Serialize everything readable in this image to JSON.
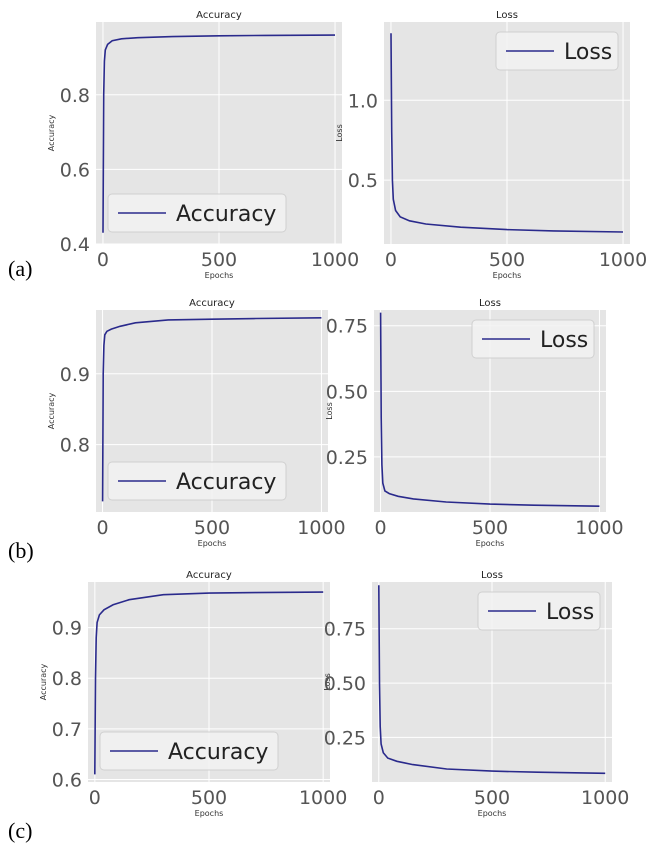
{
  "row_labels": [
    "(a)",
    "(b)",
    "(c)"
  ],
  "colors": {
    "line": "#2a2a8c",
    "plot_bg": "#e5e5e5",
    "grid": "#ffffff"
  },
  "chart_data": [
    {
      "type": "line",
      "row": "(a)",
      "title": "Accuracy",
      "xlabel": "Epochs",
      "ylabel": "Accuracy",
      "xlim": [
        -30,
        1030
      ],
      "ylim": [
        0.4,
        0.995
      ],
      "xticks": [
        0,
        500,
        1000
      ],
      "yticks": [
        0.4,
        0.6,
        0.8
      ],
      "ytick_labels": [
        "0.4",
        "0.6",
        "0.8"
      ],
      "grid": true,
      "legend": "lower-left",
      "series": [
        {
          "name": "Accuracy",
          "points": [
            [
              0,
              0.43
            ],
            [
              3,
              0.8
            ],
            [
              6,
              0.89
            ],
            [
              10,
              0.92
            ],
            [
              20,
              0.935
            ],
            [
              40,
              0.945
            ],
            [
              80,
              0.95
            ],
            [
              150,
              0.953
            ],
            [
              300,
              0.956
            ],
            [
              500,
              0.958
            ],
            [
              700,
              0.959
            ],
            [
              1000,
              0.96
            ]
          ]
        }
      ]
    },
    {
      "type": "line",
      "row": "(a)",
      "title": "Loss",
      "xlabel": "Epochs",
      "ylabel": "Loss",
      "xlim": [
        -30,
        1030
      ],
      "ylim": [
        0.1,
        1.49
      ],
      "xticks": [
        0,
        500,
        1000
      ],
      "yticks": [
        0.5,
        1.0
      ],
      "ytick_labels": [
        "0.5",
        "1.0"
      ],
      "grid": true,
      "legend": "top-right",
      "series": [
        {
          "name": "Loss",
          "points": [
            [
              0,
              1.42
            ],
            [
              3,
              0.8
            ],
            [
              6,
              0.5
            ],
            [
              10,
              0.38
            ],
            [
              20,
              0.31
            ],
            [
              40,
              0.27
            ],
            [
              80,
              0.245
            ],
            [
              150,
              0.225
            ],
            [
              300,
              0.205
            ],
            [
              500,
              0.19
            ],
            [
              700,
              0.182
            ],
            [
              1000,
              0.175
            ]
          ]
        }
      ]
    },
    {
      "type": "line",
      "row": "(b)",
      "title": "Accuracy",
      "xlabel": "Epochs",
      "ylabel": "Accuracy",
      "xlim": [
        -30,
        1030
      ],
      "ylim": [
        0.705,
        0.99
      ],
      "xticks": [
        0,
        500,
        1000
      ],
      "yticks": [
        0.8,
        0.9
      ],
      "ytick_labels": [
        "0.8",
        "0.9"
      ],
      "grid": true,
      "legend": "lower-left",
      "series": [
        {
          "name": "Accuracy",
          "points": [
            [
              0,
              0.72
            ],
            [
              3,
              0.9
            ],
            [
              6,
              0.94
            ],
            [
              10,
              0.955
            ],
            [
              20,
              0.96
            ],
            [
              40,
              0.963
            ],
            [
              80,
              0.967
            ],
            [
              150,
              0.972
            ],
            [
              300,
              0.976
            ],
            [
              500,
              0.977
            ],
            [
              700,
              0.978
            ],
            [
              1000,
              0.979
            ]
          ]
        }
      ]
    },
    {
      "type": "line",
      "row": "(b)",
      "title": "Loss",
      "xlabel": "Epochs",
      "ylabel": "Loss",
      "xlim": [
        -30,
        1030
      ],
      "ylim": [
        0.04,
        0.81
      ],
      "xticks": [
        0,
        500,
        1000
      ],
      "yticks": [
        0.25,
        0.5,
        0.75
      ],
      "ytick_labels": [
        "0.25",
        "0.50",
        "0.75"
      ],
      "grid": true,
      "legend": "top-right",
      "series": [
        {
          "name": "Loss",
          "points": [
            [
              0,
              0.8
            ],
            [
              3,
              0.4
            ],
            [
              6,
              0.22
            ],
            [
              10,
              0.15
            ],
            [
              20,
              0.12
            ],
            [
              40,
              0.11
            ],
            [
              80,
              0.1
            ],
            [
              150,
              0.09
            ],
            [
              300,
              0.078
            ],
            [
              500,
              0.07
            ],
            [
              700,
              0.066
            ],
            [
              1000,
              0.062
            ]
          ]
        }
      ]
    },
    {
      "type": "line",
      "row": "(c)",
      "title": "Accuracy",
      "xlabel": "Epochs",
      "ylabel": "Accuracy",
      "xlim": [
        -30,
        1030
      ],
      "ylim": [
        0.595,
        0.99
      ],
      "xticks": [
        0,
        500,
        1000
      ],
      "yticks": [
        0.6,
        0.7,
        0.8,
        0.9
      ],
      "ytick_labels": [
        "0.6",
        "0.7",
        "0.8",
        "0.9"
      ],
      "grid": true,
      "legend": "lower-left",
      "series": [
        {
          "name": "Accuracy",
          "points": [
            [
              0,
              0.61
            ],
            [
              3,
              0.8
            ],
            [
              6,
              0.88
            ],
            [
              10,
              0.91
            ],
            [
              20,
              0.925
            ],
            [
              40,
              0.935
            ],
            [
              80,
              0.945
            ],
            [
              150,
              0.955
            ],
            [
              300,
              0.965
            ],
            [
              500,
              0.968
            ],
            [
              700,
              0.969
            ],
            [
              1000,
              0.97
            ]
          ]
        }
      ]
    },
    {
      "type": "line",
      "row": "(c)",
      "title": "Loss",
      "xlabel": "Epochs",
      "ylabel": "Loss",
      "xlim": [
        -30,
        1030
      ],
      "ylim": [
        0.045,
        0.965
      ],
      "xticks": [
        0,
        500,
        1000
      ],
      "yticks": [
        0.25,
        0.5,
        0.75
      ],
      "ytick_labels": [
        "0.25",
        "0.50",
        "0.75"
      ],
      "grid": true,
      "legend": "top-right",
      "series": [
        {
          "name": "Loss",
          "points": [
            [
              0,
              0.95
            ],
            [
              3,
              0.5
            ],
            [
              6,
              0.3
            ],
            [
              10,
              0.22
            ],
            [
              20,
              0.18
            ],
            [
              40,
              0.155
            ],
            [
              80,
              0.14
            ],
            [
              150,
              0.125
            ],
            [
              300,
              0.105
            ],
            [
              500,
              0.095
            ],
            [
              700,
              0.09
            ],
            [
              1000,
              0.085
            ]
          ]
        }
      ]
    }
  ]
}
